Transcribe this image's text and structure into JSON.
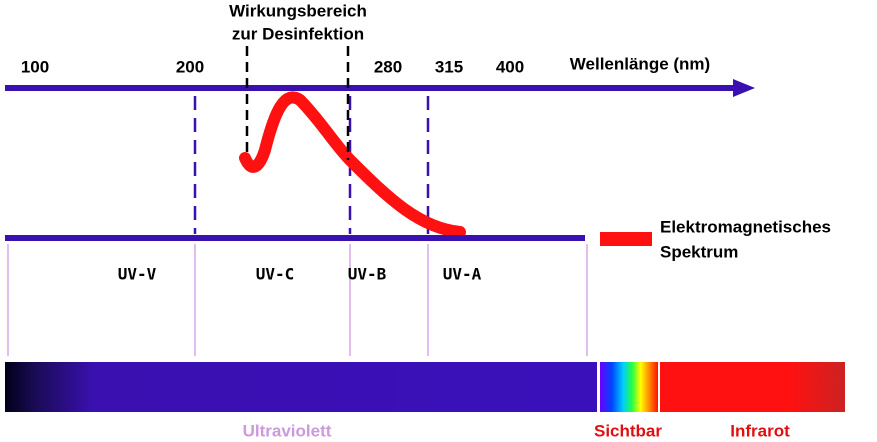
{
  "title": [
    "Wirkungsbereich",
    "zur Desinfektion"
  ],
  "axis": {
    "ticks": [
      100,
      200,
      280,
      315,
      400
    ],
    "label": "Wellenlänge (nm)"
  },
  "bands": [
    "UV-V",
    "UV-C",
    "UV-B",
    "UV-A"
  ],
  "legend": [
    "Elektromagnetisches",
    "Spektrum"
  ],
  "spectrum": {
    "ultraviolet": "Ultraviolett",
    "visible": "Sichtbar",
    "infrared": "Infrarot"
  }
}
